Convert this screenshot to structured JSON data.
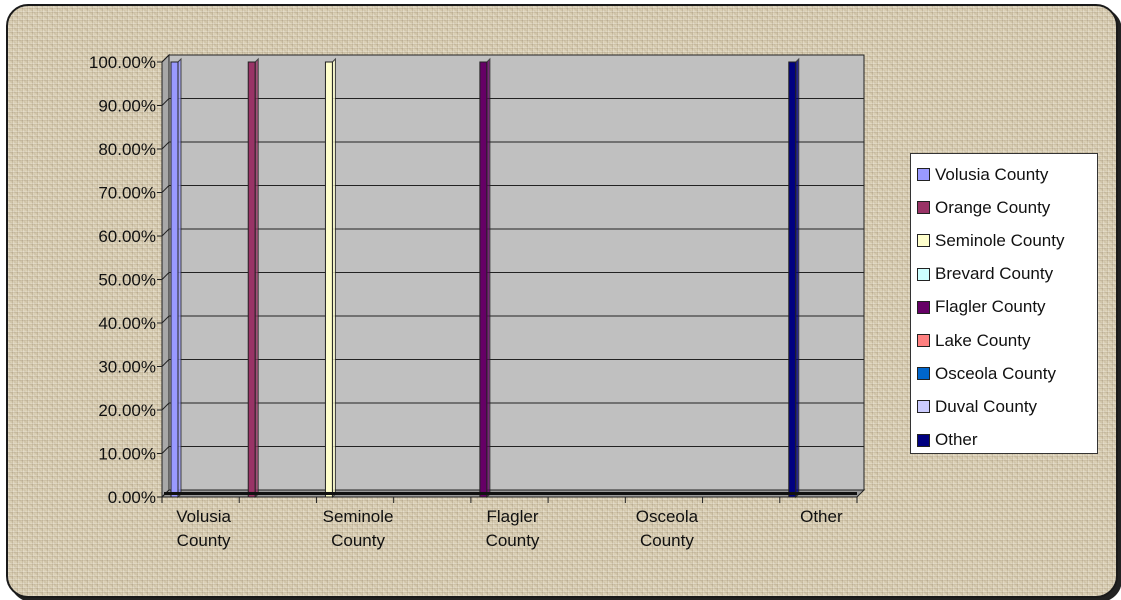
{
  "chart_data": {
    "type": "bar",
    "title": "",
    "xlabel": "",
    "ylabel": "",
    "ylim": [
      0,
      100
    ],
    "y_tick_labels": [
      "0.00%",
      "10.00%",
      "20.00%",
      "30.00%",
      "40.00%",
      "50.00%",
      "60.00%",
      "70.00%",
      "80.00%",
      "90.00%",
      "100.00%"
    ],
    "categories": [
      "Volusia County",
      "Orange County",
      "Seminole County",
      "Brevard County",
      "Flagler County",
      "Lake County",
      "Osceola County",
      "Duval County",
      "Other"
    ],
    "x_tick_labels": [
      {
        "line1": "Volusia",
        "line2": "County"
      },
      {
        "line1": "Seminole",
        "line2": "County"
      },
      {
        "line1": "Flagler",
        "line2": "County"
      },
      {
        "line1": "Osceola",
        "line2": "County"
      },
      {
        "line1": "Other",
        "line2": ""
      }
    ],
    "series": [
      {
        "name": "Volusia County",
        "color": "#9999ff",
        "values": [
          100,
          0,
          0,
          0,
          0,
          0,
          0,
          0,
          0
        ]
      },
      {
        "name": "Orange County",
        "color": "#993366",
        "values": [
          0,
          100,
          0,
          0,
          0,
          0,
          0,
          0,
          0
        ]
      },
      {
        "name": "Seminole County",
        "color": "#ffffcc",
        "values": [
          0,
          0,
          100,
          0,
          0,
          0,
          0,
          0,
          0
        ]
      },
      {
        "name": "Brevard County",
        "color": "#ccffff",
        "values": [
          0,
          0,
          0,
          0,
          0,
          0,
          0,
          0,
          0
        ]
      },
      {
        "name": "Flagler County",
        "color": "#660066",
        "values": [
          0,
          0,
          0,
          0,
          100,
          0,
          0,
          0,
          0
        ]
      },
      {
        "name": "Lake County",
        "color": "#ff8080",
        "values": [
          0,
          0,
          0,
          0,
          0,
          0,
          0,
          0,
          0
        ]
      },
      {
        "name": "Osceola County",
        "color": "#0066cc",
        "values": [
          0,
          0,
          0,
          0,
          0,
          0,
          0,
          0,
          0
        ]
      },
      {
        "name": "Duval County",
        "color": "#ccccff",
        "values": [
          0,
          0,
          0,
          0,
          0,
          0,
          0,
          0,
          0
        ]
      },
      {
        "name": "Other",
        "color": "#000080",
        "values": [
          0,
          0,
          0,
          0,
          0,
          0,
          0,
          0,
          100
        ]
      }
    ],
    "plot_background": "#c0c0c0",
    "grid": true,
    "legend_position": "right"
  }
}
